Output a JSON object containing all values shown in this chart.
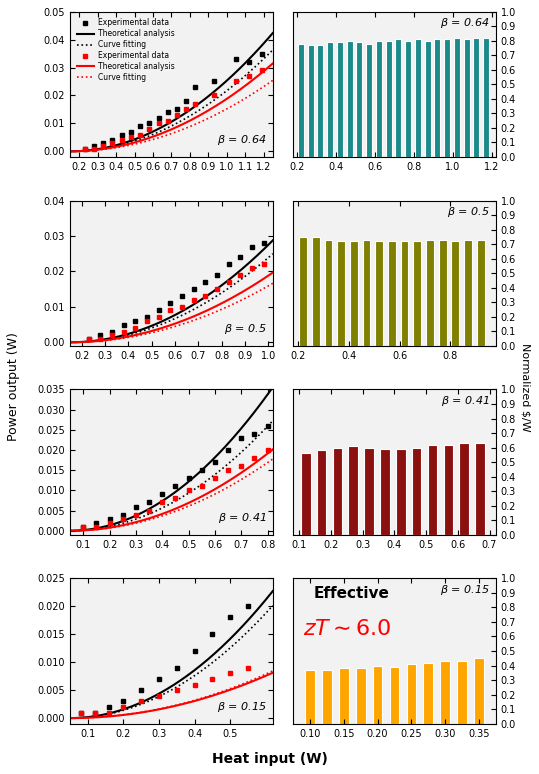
{
  "rows": [
    {
      "beta": 0.64,
      "left": {
        "xlim": [
          0.15,
          1.25
        ],
        "ylim": [
          -0.002,
          0.05
        ],
        "yticks": [
          0.0,
          0.01,
          0.02,
          0.03,
          0.04,
          0.05
        ],
        "xticks": [
          0.2,
          0.3,
          0.4,
          0.5,
          0.6,
          0.7,
          0.8,
          0.9,
          1.0,
          1.1,
          1.2
        ],
        "black_exp_x": [
          0.23,
          0.28,
          0.33,
          0.38,
          0.43,
          0.48,
          0.53,
          0.58,
          0.63,
          0.68,
          0.73,
          0.78,
          0.83,
          0.93,
          1.05,
          1.12,
          1.19
        ],
        "black_exp_y": [
          0.001,
          0.002,
          0.003,
          0.004,
          0.006,
          0.007,
          0.009,
          0.01,
          0.012,
          0.014,
          0.015,
          0.018,
          0.023,
          0.025,
          0.033,
          0.032,
          0.035
        ],
        "red_exp_x": [
          0.23,
          0.28,
          0.33,
          0.38,
          0.43,
          0.48,
          0.53,
          0.58,
          0.63,
          0.68,
          0.73,
          0.78,
          0.83,
          0.93,
          1.05,
          1.12,
          1.19
        ],
        "red_exp_y": [
          0.001,
          0.001,
          0.002,
          0.003,
          0.004,
          0.005,
          0.006,
          0.008,
          0.01,
          0.011,
          0.013,
          0.015,
          0.017,
          0.02,
          0.025,
          0.027,
          0.029
        ],
        "black_theory_coeff": [
          0.035,
          0.0,
          0.0
        ],
        "red_theory_coeff": [
          0.026,
          0.0,
          0.0
        ],
        "black_fit_coeff": [
          0.03,
          0.0,
          0.0
        ],
        "red_fit_coeff": [
          0.021,
          0.0,
          0.0
        ],
        "curve_xmin": 0.15,
        "curve_xmax": 1.25,
        "show_legend": true
      },
      "right": {
        "xlim": [
          0.18,
          1.22
        ],
        "ylim": [
          0,
          1.0
        ],
        "yticks": [
          0.0,
          0.1,
          0.2,
          0.3,
          0.4,
          0.5,
          0.6,
          0.7,
          0.8,
          0.9,
          1.0
        ],
        "xticks": [
          0.2,
          0.4,
          0.6,
          0.8,
          1.0,
          1.2
        ],
        "bar_x": [
          0.22,
          0.27,
          0.32,
          0.37,
          0.42,
          0.47,
          0.52,
          0.57,
          0.62,
          0.67,
          0.72,
          0.77,
          0.82,
          0.87,
          0.92,
          0.97,
          1.02,
          1.07,
          1.12,
          1.17
        ],
        "bar_h": [
          0.78,
          0.77,
          0.77,
          0.79,
          0.79,
          0.8,
          0.79,
          0.78,
          0.8,
          0.8,
          0.81,
          0.8,
          0.81,
          0.8,
          0.81,
          0.81,
          0.82,
          0.81,
          0.82,
          0.82
        ],
        "bar_color": "#1a8a8a",
        "bar_width": 0.038
      }
    },
    {
      "beta": 0.5,
      "left": {
        "xlim": [
          0.15,
          1.02
        ],
        "ylim": [
          -0.001,
          0.04
        ],
        "yticks": [
          0.0,
          0.01,
          0.02,
          0.03,
          0.04
        ],
        "xticks": [
          0.2,
          0.3,
          0.4,
          0.5,
          0.6,
          0.7,
          0.8,
          0.9,
          1.0
        ],
        "black_exp_x": [
          0.23,
          0.28,
          0.33,
          0.38,
          0.43,
          0.48,
          0.53,
          0.58,
          0.63,
          0.68,
          0.73,
          0.78,
          0.83,
          0.88,
          0.93,
          0.98
        ],
        "black_exp_y": [
          0.001,
          0.002,
          0.003,
          0.005,
          0.006,
          0.007,
          0.009,
          0.011,
          0.013,
          0.015,
          0.017,
          0.019,
          0.022,
          0.024,
          0.027,
          0.028
        ],
        "red_exp_x": [
          0.23,
          0.28,
          0.33,
          0.38,
          0.43,
          0.48,
          0.53,
          0.58,
          0.63,
          0.68,
          0.73,
          0.78,
          0.83,
          0.88,
          0.93,
          0.98
        ],
        "red_exp_y": [
          0.001,
          0.001,
          0.002,
          0.003,
          0.004,
          0.006,
          0.007,
          0.009,
          0.01,
          0.012,
          0.013,
          0.015,
          0.017,
          0.019,
          0.021,
          0.022
        ],
        "black_theory_coeff": [
          0.038,
          0.0,
          0.0
        ],
        "red_theory_coeff": [
          0.026,
          0.0,
          0.0
        ],
        "black_fit_coeff": [
          0.033,
          0.0,
          0.0
        ],
        "red_fit_coeff": [
          0.022,
          0.0,
          0.0
        ],
        "curve_xmin": 0.15,
        "curve_xmax": 1.02,
        "show_legend": false
      },
      "right": {
        "xlim": [
          0.18,
          0.98
        ],
        "ylim": [
          0,
          1.0
        ],
        "yticks": [
          0.0,
          0.1,
          0.2,
          0.3,
          0.4,
          0.5,
          0.6,
          0.7,
          0.8,
          0.9,
          1.0
        ],
        "xticks": [
          0.2,
          0.4,
          0.6,
          0.8
        ],
        "bar_x": [
          0.22,
          0.27,
          0.32,
          0.37,
          0.42,
          0.47,
          0.52,
          0.57,
          0.62,
          0.67,
          0.72,
          0.77,
          0.82,
          0.87,
          0.92
        ],
        "bar_h": [
          0.75,
          0.75,
          0.73,
          0.72,
          0.72,
          0.73,
          0.72,
          0.72,
          0.72,
          0.72,
          0.73,
          0.73,
          0.72,
          0.73,
          0.73
        ],
        "bar_color": "#808000",
        "bar_width": 0.038
      }
    },
    {
      "beta": 0.41,
      "left": {
        "xlim": [
          0.05,
          0.82
        ],
        "ylim": [
          -0.001,
          0.035
        ],
        "yticks": [
          0.0,
          0.005,
          0.01,
          0.015,
          0.02,
          0.025,
          0.03,
          0.035
        ],
        "xticks": [
          0.1,
          0.2,
          0.3,
          0.4,
          0.5,
          0.6,
          0.7,
          0.8
        ],
        "black_exp_x": [
          0.1,
          0.15,
          0.2,
          0.25,
          0.3,
          0.35,
          0.4,
          0.45,
          0.5,
          0.55,
          0.6,
          0.65,
          0.7,
          0.75,
          0.8
        ],
        "black_exp_y": [
          0.001,
          0.002,
          0.003,
          0.004,
          0.006,
          0.007,
          0.009,
          0.011,
          0.013,
          0.015,
          0.017,
          0.02,
          0.023,
          0.024,
          0.026
        ],
        "red_exp_x": [
          0.1,
          0.15,
          0.2,
          0.25,
          0.3,
          0.35,
          0.4,
          0.45,
          0.5,
          0.55,
          0.6,
          0.65,
          0.7,
          0.75,
          0.8
        ],
        "red_exp_y": [
          0.001,
          0.001,
          0.002,
          0.003,
          0.004,
          0.005,
          0.007,
          0.008,
          0.01,
          0.011,
          0.013,
          0.015,
          0.016,
          0.018,
          0.02
        ],
        "black_theory_coeff": [
          0.06,
          0.0,
          0.0
        ],
        "red_theory_coeff": [
          0.034,
          0.0,
          0.0
        ],
        "black_fit_coeff": [
          0.046,
          0.0,
          0.0
        ],
        "red_fit_coeff": [
          0.03,
          0.0,
          0.0
        ],
        "curve_xmin": 0.05,
        "curve_xmax": 0.82,
        "show_legend": false
      },
      "right": {
        "xlim": [
          0.08,
          0.72
        ],
        "ylim": [
          0,
          1.0
        ],
        "yticks": [
          0.0,
          0.1,
          0.2,
          0.3,
          0.4,
          0.5,
          0.6,
          0.7,
          0.8,
          0.9,
          1.0
        ],
        "xticks": [
          0.1,
          0.2,
          0.3,
          0.4,
          0.5,
          0.6,
          0.7
        ],
        "bar_x": [
          0.12,
          0.17,
          0.22,
          0.27,
          0.32,
          0.37,
          0.42,
          0.47,
          0.52,
          0.57,
          0.62,
          0.67
        ],
        "bar_h": [
          0.56,
          0.58,
          0.6,
          0.61,
          0.6,
          0.59,
          0.59,
          0.6,
          0.62,
          0.62,
          0.63,
          0.63
        ],
        "bar_color": "#8B1010",
        "bar_width": 0.038
      }
    },
    {
      "beta": 0.15,
      "left": {
        "xlim": [
          0.05,
          0.62
        ],
        "ylim": [
          -0.001,
          0.025
        ],
        "yticks": [
          0.0,
          0.005,
          0.01,
          0.015,
          0.02,
          0.025
        ],
        "xticks": [
          0.1,
          0.2,
          0.3,
          0.4,
          0.5
        ],
        "black_exp_x": [
          0.08,
          0.12,
          0.16,
          0.2,
          0.25,
          0.3,
          0.35,
          0.4,
          0.45,
          0.5,
          0.55
        ],
        "black_exp_y": [
          0.001,
          0.001,
          0.002,
          0.003,
          0.005,
          0.007,
          0.009,
          0.012,
          0.015,
          0.018,
          0.02
        ],
        "red_exp_x": [
          0.08,
          0.12,
          0.16,
          0.2,
          0.25,
          0.3,
          0.35,
          0.4,
          0.45,
          0.5,
          0.55
        ],
        "red_exp_y": [
          0.001,
          0.001,
          0.001,
          0.002,
          0.003,
          0.004,
          0.005,
          0.006,
          0.007,
          0.008,
          0.009
        ],
        "black_theory_coeff": [
          0.07,
          0.0,
          0.0
        ],
        "red_theory_coeff": [
          0.025,
          0.0,
          0.0
        ],
        "black_fit_coeff": [
          0.062,
          0.0,
          0.0
        ],
        "red_fit_coeff": [
          0.026,
          0.0,
          0.0
        ],
        "curve_xmin": 0.05,
        "curve_xmax": 0.62,
        "show_legend": false
      },
      "right": {
        "xlim": [
          0.075,
          0.375
        ],
        "ylim": [
          0,
          1.0
        ],
        "yticks": [
          0.0,
          0.1,
          0.2,
          0.3,
          0.4,
          0.5,
          0.6,
          0.7,
          0.8,
          0.9,
          1.0
        ],
        "xticks": [
          0.1,
          0.15,
          0.2,
          0.25,
          0.3,
          0.35
        ],
        "bar_x": [
          0.1,
          0.125,
          0.15,
          0.175,
          0.2,
          0.225,
          0.25,
          0.275,
          0.3,
          0.325,
          0.35
        ],
        "bar_h": [
          0.37,
          0.37,
          0.38,
          0.38,
          0.4,
          0.39,
          0.41,
          0.42,
          0.43,
          0.43,
          0.45
        ],
        "bar_color": "#FFA500",
        "bar_width": 0.018
      }
    }
  ],
  "ylabel_left": "Power output (W)",
  "ylabel_right": "Normalized $/W",
  "xlabel": "Heat input (W)"
}
